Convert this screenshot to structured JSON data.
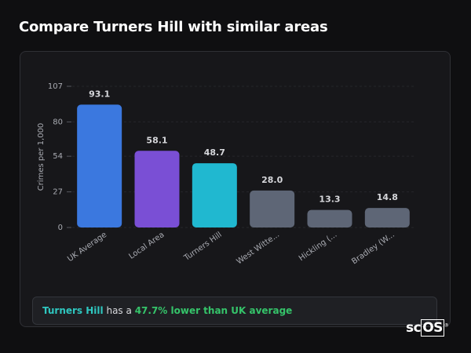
{
  "title": "Compare Turners Hill with similar areas",
  "chart_data": {
    "type": "bar",
    "y_label": "Crimes per 1,000",
    "categories": [
      "UK Average",
      "Local Area",
      "Turners Hill",
      "West Witte...",
      "Hickling (...",
      "Bradley (W..."
    ],
    "values": [
      93.1,
      58.1,
      48.7,
      28.0,
      13.3,
      14.8
    ],
    "value_labels": [
      "93.1",
      "58.1",
      "48.7",
      "28.0",
      "13.3",
      "14.8"
    ],
    "colors": [
      "#3b78df",
      "#7a4fd5",
      "#20b8d0",
      "#5e6676",
      "#5e6676",
      "#5e6676"
    ],
    "ylim": [
      0,
      107
    ],
    "yticks": [
      0,
      27,
      54,
      80,
      107
    ],
    "grid": true
  },
  "footer": {
    "place": "Turners Hill",
    "text": "has a",
    "highlight": "47.7% lower than UK average"
  },
  "logo": {
    "text": "sc",
    "boxed": "OS",
    "mark": "®"
  }
}
